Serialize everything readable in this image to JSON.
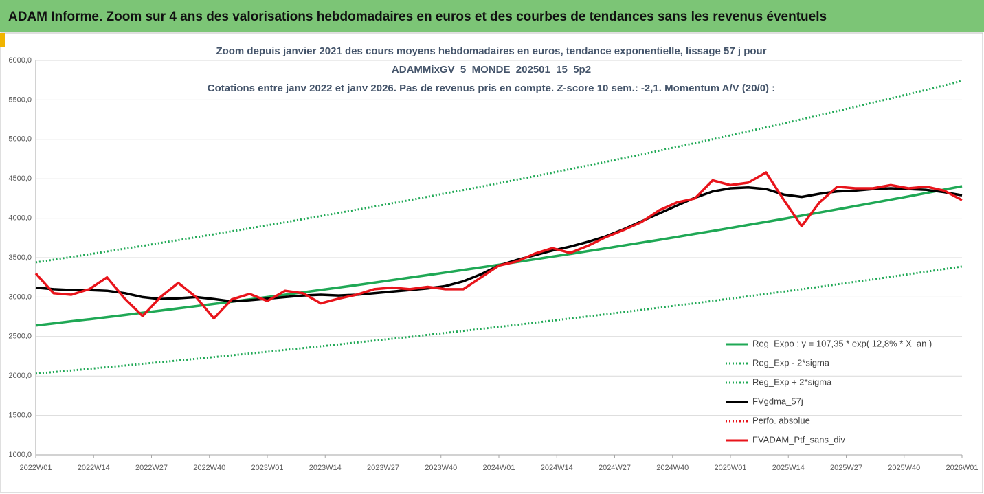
{
  "header": {
    "title": "ADAM Informe. Zoom sur 4 ans des valorisations hebdomadaires en euros et des courbes de tendances sans les revenus éventuels"
  },
  "chart_data": {
    "type": "line",
    "title_lines": [
      "Zoom depuis janvier 2021 des cours moyens hebdomadaires  en euros, tendance exponentielle, lissage 57 j pour",
      "ADAMMixGV_5_MONDE_202501_15_5p2",
      "Cotations entre janv 2022 et janv 2026. Pas de revenus pris en compte. Z-score 10 sem.: -2,1. Momentum A/V (20/0) :"
    ],
    "x": [
      0,
      4,
      8,
      12,
      16,
      20,
      24,
      28,
      32,
      36,
      40,
      44,
      48,
      52,
      56,
      60,
      64,
      68,
      72,
      76,
      80,
      84,
      88,
      92,
      96,
      100,
      104,
      108,
      112,
      116,
      120,
      124,
      128,
      132,
      136,
      140,
      144,
      148,
      152,
      156,
      160,
      164,
      168,
      172,
      176,
      180,
      184,
      188,
      192,
      196,
      200,
      204,
      208
    ],
    "xlim": [
      0,
      208
    ],
    "xticks": [
      {
        "value": 0,
        "label": "2022W01"
      },
      {
        "value": 13,
        "label": "2022W14"
      },
      {
        "value": 26,
        "label": "2022W27"
      },
      {
        "value": 39,
        "label": "2022W40"
      },
      {
        "value": 52,
        "label": "2023W01"
      },
      {
        "value": 65,
        "label": "2023W14"
      },
      {
        "value": 78,
        "label": "2023W27"
      },
      {
        "value": 91,
        "label": "2023W40"
      },
      {
        "value": 104,
        "label": "2024W01"
      },
      {
        "value": 117,
        "label": "2024W14"
      },
      {
        "value": 130,
        "label": "2024W27"
      },
      {
        "value": 143,
        "label": "2024W40"
      },
      {
        "value": 156,
        "label": "2025W01"
      },
      {
        "value": 169,
        "label": "2025W14"
      },
      {
        "value": 182,
        "label": "2025W27"
      },
      {
        "value": 195,
        "label": "2025W40"
      },
      {
        "value": 208,
        "label": "2026W01"
      }
    ],
    "ylim": [
      1000,
      6000
    ],
    "yticks": [
      {
        "value": 1000,
        "label": "1000,0"
      },
      {
        "value": 1500,
        "label": "1500,0"
      },
      {
        "value": 2000,
        "label": "2000,0"
      },
      {
        "value": 2500,
        "label": "2500,0"
      },
      {
        "value": 3000,
        "label": "3000,0"
      },
      {
        "value": 3500,
        "label": "3500,0"
      },
      {
        "value": 4000,
        "label": "4000,0"
      },
      {
        "value": 4500,
        "label": "4500,0"
      },
      {
        "value": 5000,
        "label": "5000,0"
      },
      {
        "value": 5500,
        "label": "5500,0"
      },
      {
        "value": 6000,
        "label": "6000,0"
      }
    ],
    "grid": true,
    "series": [
      {
        "name": "Reg_Expo : y = 107,35 * exp( 12,8% *  X_an )",
        "color": "#1fa855",
        "style": "solid",
        "values": [
          2640,
          2666,
          2693,
          2719,
          2746,
          2773,
          2801,
          2828,
          2856,
          2885,
          2913,
          2942,
          2971,
          3001,
          3030,
          3060,
          3091,
          3121,
          3152,
          3183,
          3215,
          3247,
          3279,
          3311,
          3344,
          3377,
          3410,
          3444,
          3478,
          3513,
          3547,
          3583,
          3618,
          3654,
          3690,
          3726,
          3763,
          3801,
          3838,
          3876,
          3915,
          3953,
          3992,
          4032,
          4072,
          4112,
          4153,
          4194,
          4236,
          4277,
          4320,
          4363,
          4406
        ]
      },
      {
        "name": "Reg_Exp - 2*sigma",
        "color": "#1fa855",
        "style": "dotted",
        "values": [
          2030,
          2050,
          2070,
          2091,
          2112,
          2132,
          2154,
          2175,
          2196,
          2218,
          2240,
          2262,
          2285,
          2307,
          2330,
          2353,
          2376,
          2400,
          2424,
          2448,
          2472,
          2496,
          2521,
          2546,
          2571,
          2597,
          2622,
          2648,
          2675,
          2701,
          2728,
          2755,
          2782,
          2810,
          2837,
          2865,
          2894,
          2922,
          2951,
          2981,
          3010,
          3040,
          3070,
          3100,
          3131,
          3162,
          3193,
          3225,
          3257,
          3289,
          3322,
          3355,
          3388
        ]
      },
      {
        "name": "Reg_Exp + 2*sigma",
        "color": "#1fa855",
        "style": "dotted",
        "values": [
          3440,
          3474,
          3508,
          3543,
          3578,
          3614,
          3649,
          3686,
          3722,
          3759,
          3796,
          3834,
          3872,
          3910,
          3949,
          3988,
          4027,
          4067,
          4107,
          4148,
          4189,
          4230,
          4272,
          4315,
          4357,
          4400,
          4444,
          4488,
          4532,
          4577,
          4623,
          4668,
          4714,
          4761,
          4808,
          4856,
          4904,
          4952,
          5001,
          5051,
          5101,
          5151,
          5202,
          5254,
          5306,
          5358,
          5411,
          5465,
          5519,
          5573,
          5628,
          5684,
          5741
        ]
      },
      {
        "name": "FVgdma_57j",
        "color": "#000000",
        "style": "solid",
        "values": [
          3120,
          3100,
          3090,
          3090,
          3080,
          3050,
          3000,
          2975,
          2985,
          3000,
          2975,
          2945,
          2960,
          2980,
          3000,
          3020,
          3030,
          3020,
          3030,
          3050,
          3070,
          3090,
          3110,
          3140,
          3200,
          3290,
          3400,
          3470,
          3530,
          3590,
          3640,
          3700,
          3770,
          3860,
          3960,
          4060,
          4160,
          4260,
          4340,
          4380,
          4390,
          4370,
          4300,
          4270,
          4310,
          4340,
          4350,
          4370,
          4380,
          4370,
          4360,
          4330,
          4290
        ]
      },
      {
        "name": "Perfo. absolue",
        "color": "#e8141b",
        "style": "dotted",
        "values": [
          null,
          null,
          null,
          null,
          null,
          null,
          null,
          null,
          null,
          null,
          null,
          null,
          null,
          null,
          null,
          null,
          null,
          null,
          null,
          null,
          null,
          null,
          null,
          null,
          null,
          null,
          null,
          null,
          null,
          null,
          null,
          null,
          null,
          null,
          null,
          null,
          null,
          null,
          null,
          null,
          null,
          null,
          null,
          null,
          null,
          null,
          null,
          null,
          null,
          null,
          null,
          null,
          null
        ]
      },
      {
        "name": "FVADAM_Ptf_sans_div",
        "color": "#e8141b",
        "style": "solid",
        "values": [
          3300,
          3050,
          3030,
          3100,
          3250,
          2980,
          2760,
          3000,
          3180,
          3000,
          2730,
          2970,
          3040,
          2950,
          3080,
          3050,
          2920,
          2980,
          3030,
          3100,
          3120,
          3100,
          3130,
          3100,
          3100,
          3250,
          3400,
          3450,
          3550,
          3620,
          3560,
          3650,
          3760,
          3850,
          3950,
          4100,
          4200,
          4250,
          4480,
          4420,
          4450,
          4580,
          4230,
          3900,
          4200,
          4400,
          4380,
          4380,
          4420,
          4380,
          4400,
          4350,
          4230
        ]
      }
    ]
  }
}
